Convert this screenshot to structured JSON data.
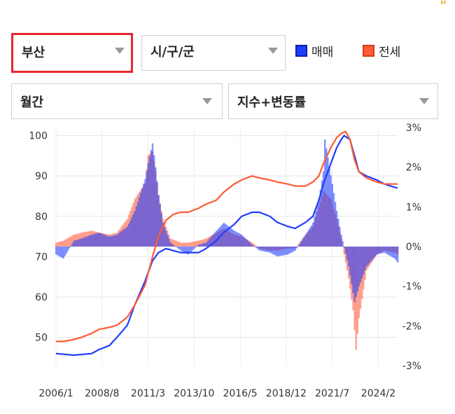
{
  "corner_mark": "”",
  "controls": {
    "region": {
      "value": "부산"
    },
    "district": {
      "value": "시/구/군"
    },
    "period": {
      "value": "월간"
    },
    "metric": {
      "value": "지수+변동률"
    }
  },
  "legend": [
    {
      "label": "매매",
      "color": "#1f3dff"
    },
    {
      "label": "전세",
      "color": "#ff5a36"
    }
  ],
  "chart_data": {
    "type": "line",
    "x_ticks": [
      "2006/1",
      "2008/8",
      "2011/3",
      "2013/10",
      "2016/5",
      "2018/12",
      "2021/7",
      "2024/2"
    ],
    "y_left_ticks": [
      "100",
      "90",
      "80",
      "70",
      "60",
      "50"
    ],
    "y_left_range": [
      43,
      102
    ],
    "y_right_ticks": [
      "3%",
      "2%",
      "1%",
      "0%",
      "-1%",
      "-2%",
      "-3%"
    ],
    "y_right_range": [
      -3,
      3
    ],
    "x_range": [
      "2006/1",
      "2025/3"
    ],
    "grid": true,
    "series": [
      {
        "name": "매매",
        "color": "#1f3dff",
        "index_points": [
          [
            "2006/1",
            46
          ],
          [
            "2007/1",
            45.6
          ],
          [
            "2008/1",
            46
          ],
          [
            "2008/6",
            47
          ],
          [
            "2009/1",
            48
          ],
          [
            "2009/6",
            50
          ],
          [
            "2010/1",
            53
          ],
          [
            "2010/6",
            58
          ],
          [
            "2011/1",
            64
          ],
          [
            "2011/6",
            69
          ],
          [
            "2011/10",
            71
          ],
          [
            "2012/3",
            72
          ],
          [
            "2012/8",
            71.5
          ],
          [
            "2013/1",
            71
          ],
          [
            "2013/6",
            71
          ],
          [
            "2014/1",
            71
          ],
          [
            "2014/6",
            72
          ],
          [
            "2015/1",
            74
          ],
          [
            "2015/6",
            76
          ],
          [
            "2016/1",
            78
          ],
          [
            "2016/6",
            80
          ],
          [
            "2017/1",
            81
          ],
          [
            "2017/6",
            81
          ],
          [
            "2018/1",
            80
          ],
          [
            "2018/6",
            78.5
          ],
          [
            "2019/1",
            77.5
          ],
          [
            "2019/6",
            77
          ],
          [
            "2020/1",
            78.5
          ],
          [
            "2020/6",
            80
          ],
          [
            "2020/10",
            84
          ],
          [
            "2021/1",
            88
          ],
          [
            "2021/6",
            93
          ],
          [
            "2021/10",
            97
          ],
          [
            "2022/1",
            99
          ],
          [
            "2022/3",
            100
          ],
          [
            "2022/7",
            99
          ],
          [
            "2022/10",
            95
          ],
          [
            "2023/1",
            91
          ],
          [
            "2023/6",
            90
          ],
          [
            "2024/1",
            89
          ],
          [
            "2024/6",
            88
          ],
          [
            "2025/1",
            87.2
          ],
          [
            "2025/3",
            87
          ]
        ],
        "change_rate_pct": [
          [
            "2006/1",
            -0.2
          ],
          [
            "2006/6",
            -0.3
          ],
          [
            "2007/1",
            0.15
          ],
          [
            "2007/6",
            0.2
          ],
          [
            "2008/1",
            0.3
          ],
          [
            "2008/6",
            0.35
          ],
          [
            "2009/1",
            0.25
          ],
          [
            "2009/6",
            0.3
          ],
          [
            "2010/1",
            0.5
          ],
          [
            "2010/6",
            0.9
          ],
          [
            "2011/1",
            1.7
          ],
          [
            "2011/3",
            2.1
          ],
          [
            "2011/6",
            2.6
          ],
          [
            "2011/8",
            2.0
          ],
          [
            "2011/10",
            1.3
          ],
          [
            "2012/1",
            0.6
          ],
          [
            "2012/6",
            0.1
          ],
          [
            "2013/1",
            -0.1
          ],
          [
            "2013/6",
            -0.2
          ],
          [
            "2014/1",
            0.05
          ],
          [
            "2014/6",
            0.1
          ],
          [
            "2015/1",
            0.4
          ],
          [
            "2015/6",
            0.6
          ],
          [
            "2016/1",
            0.4
          ],
          [
            "2016/6",
            0.3
          ],
          [
            "2017/1",
            0.05
          ],
          [
            "2017/6",
            -0.1
          ],
          [
            "2018/1",
            -0.15
          ],
          [
            "2018/6",
            -0.25
          ],
          [
            "2019/1",
            -0.2
          ],
          [
            "2019/6",
            -0.1
          ],
          [
            "2020/1",
            0.3
          ],
          [
            "2020/6",
            0.6
          ],
          [
            "2020/10",
            1.2
          ],
          [
            "2021/1",
            1.9
          ],
          [
            "2021/2",
            2.7
          ],
          [
            "2021/6",
            1.8
          ],
          [
            "2021/10",
            0.9
          ],
          [
            "2022/1",
            0.3
          ],
          [
            "2022/6",
            -0.5
          ],
          [
            "2022/10",
            -1.4
          ],
          [
            "2023/1",
            -1.0
          ],
          [
            "2023/6",
            -0.5
          ],
          [
            "2024/1",
            -0.2
          ],
          [
            "2024/6",
            -0.15
          ],
          [
            "2025/1",
            -0.3
          ],
          [
            "2025/3",
            -0.4
          ]
        ]
      },
      {
        "name": "전세",
        "color": "#ff5a36",
        "index_points": [
          [
            "2006/1",
            49
          ],
          [
            "2006/6",
            49
          ],
          [
            "2007/1",
            49.5
          ],
          [
            "2007/6",
            50
          ],
          [
            "2008/1",
            51
          ],
          [
            "2008/6",
            52
          ],
          [
            "2009/1",
            52.5
          ],
          [
            "2009/6",
            53
          ],
          [
            "2010/1",
            55
          ],
          [
            "2010/6",
            58
          ],
          [
            "2011/1",
            63
          ],
          [
            "2011/6",
            70
          ],
          [
            "2011/10",
            75
          ],
          [
            "2012/3",
            79
          ],
          [
            "2012/8",
            80.5
          ],
          [
            "2013/1",
            81
          ],
          [
            "2013/6",
            81
          ],
          [
            "2014/1",
            82
          ],
          [
            "2014/6",
            83
          ],
          [
            "2015/1",
            84
          ],
          [
            "2015/6",
            86
          ],
          [
            "2016/1",
            88
          ],
          [
            "2016/6",
            89
          ],
          [
            "2017/1",
            90
          ],
          [
            "2017/6",
            89.5
          ],
          [
            "2018/1",
            89
          ],
          [
            "2018/6",
            88.5
          ],
          [
            "2019/1",
            88
          ],
          [
            "2019/6",
            87.5
          ],
          [
            "2020/1",
            87.5
          ],
          [
            "2020/6",
            88.5
          ],
          [
            "2020/10",
            90
          ],
          [
            "2021/1",
            93
          ],
          [
            "2021/6",
            97
          ],
          [
            "2021/10",
            99.5
          ],
          [
            "2022/1",
            100.5
          ],
          [
            "2022/4",
            101
          ],
          [
            "2022/7",
            99
          ],
          [
            "2022/10",
            94
          ],
          [
            "2023/1",
            91
          ],
          [
            "2023/6",
            89.5
          ],
          [
            "2024/1",
            88.5
          ],
          [
            "2024/6",
            88
          ],
          [
            "2025/1",
            88
          ],
          [
            "2025/3",
            88
          ]
        ],
        "change_rate_pct": [
          [
            "2006/1",
            0.1
          ],
          [
            "2006/6",
            0.15
          ],
          [
            "2007/1",
            0.3
          ],
          [
            "2007/6",
            0.35
          ],
          [
            "2008/1",
            0.4
          ],
          [
            "2008/6",
            0.35
          ],
          [
            "2009/1",
            0.3
          ],
          [
            "2009/6",
            0.35
          ],
          [
            "2010/1",
            0.7
          ],
          [
            "2010/6",
            1.2
          ],
          [
            "2011/1",
            1.6
          ],
          [
            "2011/3",
            2.3
          ],
          [
            "2011/6",
            2.4
          ],
          [
            "2011/8",
            1.9
          ],
          [
            "2011/10",
            1.3
          ],
          [
            "2012/1",
            0.7
          ],
          [
            "2012/6",
            0.2
          ],
          [
            "2013/1",
            0.1
          ],
          [
            "2013/6",
            0.1
          ],
          [
            "2014/1",
            0.15
          ],
          [
            "2014/6",
            0.2
          ],
          [
            "2015/1",
            0.35
          ],
          [
            "2015/6",
            0.45
          ],
          [
            "2016/1",
            0.3
          ],
          [
            "2016/6",
            0.25
          ],
          [
            "2017/1",
            0.1
          ],
          [
            "2017/6",
            -0.05
          ],
          [
            "2018/1",
            -0.1
          ],
          [
            "2018/6",
            -0.1
          ],
          [
            "2019/1",
            -0.05
          ],
          [
            "2019/6",
            -0.05
          ],
          [
            "2020/1",
            0.3
          ],
          [
            "2020/6",
            0.5
          ],
          [
            "2020/10",
            1.0
          ],
          [
            "2021/1",
            1.4
          ],
          [
            "2021/6",
            1.2
          ],
          [
            "2021/10",
            0.7
          ],
          [
            "2022/1",
            0.2
          ],
          [
            "2022/6",
            -0.8
          ],
          [
            "2022/9",
            -1.6
          ],
          [
            "2022/11",
            -2.6
          ],
          [
            "2023/1",
            -1.8
          ],
          [
            "2023/6",
            -0.6
          ],
          [
            "2024/1",
            -0.2
          ],
          [
            "2024/6",
            -0.1
          ],
          [
            "2025/1",
            -0.15
          ],
          [
            "2025/3",
            -0.2
          ]
        ]
      }
    ]
  }
}
